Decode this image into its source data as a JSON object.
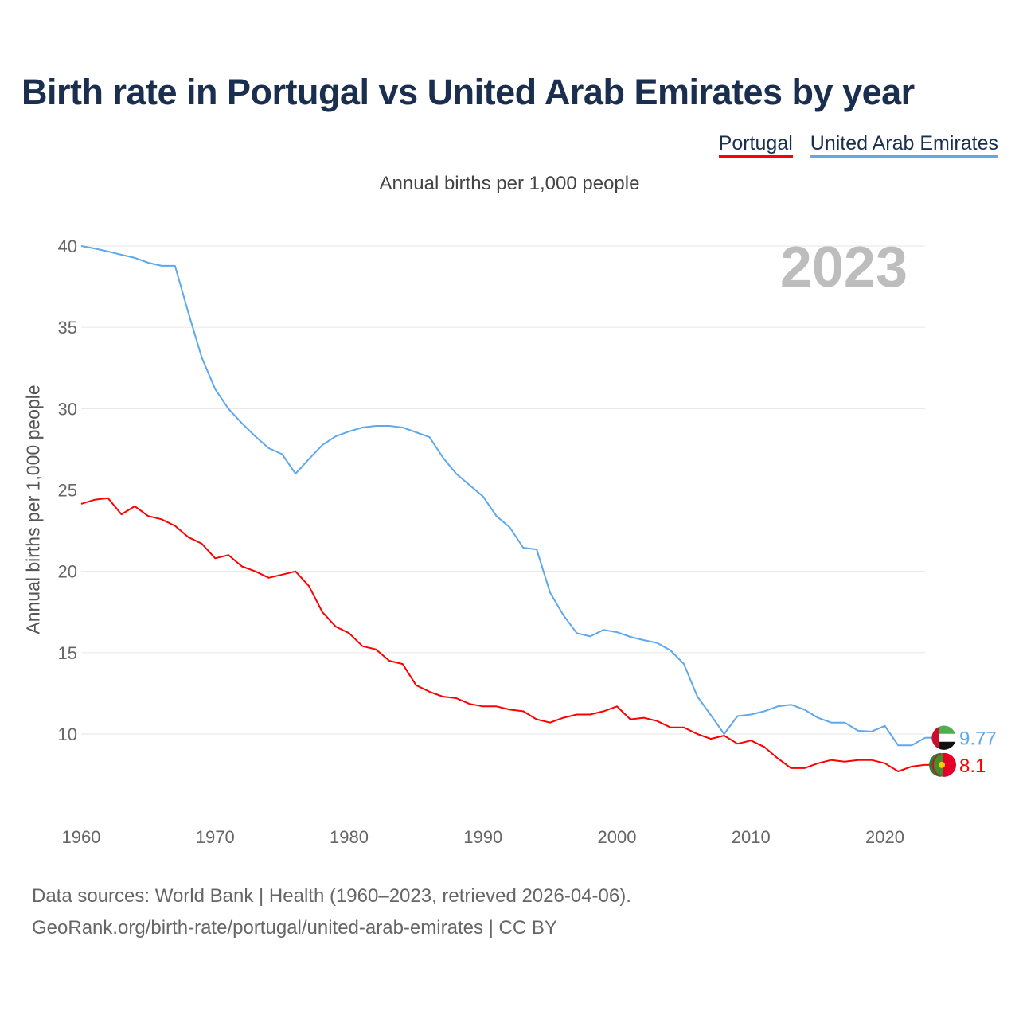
{
  "title": "Birth rate in Portugal vs United Arab Emirates by year",
  "subtitle": "Annual births per 1,000 people",
  "year_badge": "2023",
  "footer": {
    "line1": "Data sources: World Bank | Health (1960–2023, retrieved 2026-04-06).",
    "line2": "GeoRank.org/birth-rate/portugal/united-arab-emirates | CC BY"
  },
  "chart_data": {
    "type": "line",
    "title": "Birth rate in Portugal vs United Arab Emirates by year",
    "xlabel": "",
    "ylabel": "Annual births per 1,000 people",
    "xlim": [
      1960,
      2023
    ],
    "ylim": [
      6,
      40
    ],
    "x_ticks": [
      1960,
      1970,
      1980,
      1990,
      2000,
      2010,
      2020
    ],
    "y_ticks": [
      10,
      15,
      20,
      25,
      30,
      35,
      40
    ],
    "grid": true,
    "legend_placement": "top-right",
    "x": [
      1960,
      1961,
      1962,
      1963,
      1964,
      1965,
      1966,
      1967,
      1968,
      1969,
      1970,
      1971,
      1972,
      1973,
      1974,
      1975,
      1976,
      1977,
      1978,
      1979,
      1980,
      1981,
      1982,
      1983,
      1984,
      1985,
      1986,
      1987,
      1988,
      1989,
      1990,
      1991,
      1992,
      1993,
      1994,
      1995,
      1996,
      1997,
      1998,
      1999,
      2000,
      2001,
      2002,
      2003,
      2004,
      2005,
      2006,
      2007,
      2008,
      2009,
      2010,
      2011,
      2012,
      2013,
      2014,
      2015,
      2016,
      2017,
      2018,
      2019,
      2020,
      2021,
      2022,
      2023
    ],
    "series": [
      {
        "name": "Portugal",
        "color": "#ff0000",
        "end_label": "8.1",
        "values": [
          24.15,
          24.4,
          24.5,
          23.5,
          24.0,
          23.4,
          23.2,
          22.8,
          22.1,
          21.7,
          20.8,
          21.0,
          20.3,
          20.0,
          19.6,
          19.8,
          20.0,
          19.1,
          17.5,
          16.6,
          16.2,
          15.4,
          15.2,
          14.5,
          14.3,
          13.0,
          12.6,
          12.3,
          12.2,
          11.85,
          11.7,
          11.7,
          11.5,
          11.4,
          10.9,
          10.7,
          11.0,
          11.2,
          11.2,
          11.4,
          11.7,
          10.9,
          11.0,
          10.8,
          10.4,
          10.4,
          10.0,
          9.7,
          9.9,
          9.4,
          9.6,
          9.2,
          8.5,
          7.9,
          7.9,
          8.2,
          8.4,
          8.3,
          8.4,
          8.4,
          8.2,
          7.7,
          8.0,
          8.1
        ]
      },
      {
        "name": "United Arab Emirates",
        "color": "#5ea8ec",
        "end_label": "9.77",
        "values": [
          40.0,
          39.85,
          39.66,
          39.46,
          39.27,
          38.97,
          38.78,
          38.78,
          35.9,
          33.15,
          31.2,
          29.98,
          29.1,
          28.3,
          27.57,
          27.2,
          26.0,
          26.9,
          27.76,
          28.3,
          28.6,
          28.84,
          28.94,
          28.94,
          28.84,
          28.55,
          28.25,
          27.0,
          26.0,
          25.3,
          24.6,
          23.4,
          22.7,
          21.45,
          21.35,
          18.7,
          17.3,
          16.2,
          16.0,
          16.4,
          16.26,
          15.97,
          15.77,
          15.6,
          15.14,
          14.3,
          12.3,
          11.17,
          10.0,
          11.1,
          11.2,
          11.4,
          11.7,
          11.8,
          11.5,
          11.0,
          10.7,
          10.7,
          10.2,
          10.15,
          10.5,
          9.3,
          9.3,
          9.77
        ]
      }
    ]
  }
}
